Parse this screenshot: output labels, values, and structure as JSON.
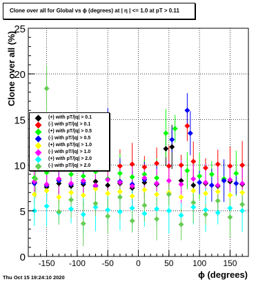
{
  "title": "Clone  over all for Global vs ϕ (degrees) at | η | <= 1.0 at pT > 0.11",
  "footer": "Thu Oct 15 19:24:10 2020",
  "chart_data": {
    "type": "scatter",
    "xlabel": "ϕ (degrees)",
    "ylabel": "Clone  over all (%)",
    "xlim": [
      -180,
      180
    ],
    "ylim": [
      0,
      25
    ],
    "x_ticks": [
      -150,
      -100,
      -50,
      0,
      50,
      100,
      150
    ],
    "y_ticks": [
      0,
      5,
      10,
      15,
      20,
      25
    ],
    "grid": true,
    "legend_position": "left, middle",
    "series": [
      {
        "name": "(+) with pT/|q| > 0.1",
        "color": "#000000",
        "points": [
          [
            -170,
            8.1
          ],
          [
            -150,
            7.6
          ],
          [
            -130,
            8.0
          ],
          [
            -110,
            7.7
          ],
          [
            -90,
            7.9
          ],
          [
            -70,
            8.2
          ],
          [
            -50,
            7.8
          ],
          [
            -30,
            8.0
          ],
          [
            -10,
            7.5
          ],
          [
            10,
            8.1
          ],
          [
            30,
            7.9
          ],
          [
            45,
            11.8
          ],
          [
            55,
            12.0
          ],
          [
            70,
            8.3
          ],
          [
            90,
            7.8
          ],
          [
            110,
            8.0
          ],
          [
            130,
            7.7
          ],
          [
            150,
            8.2
          ],
          [
            170,
            7.9
          ]
        ]
      },
      {
        "name": "(-) with pT/|q| > 0.1",
        "color": "#ff0000",
        "points": [
          [
            -170,
            9.8
          ],
          [
            -150,
            10.1
          ],
          [
            -130,
            9.6
          ],
          [
            -110,
            10.2
          ],
          [
            -90,
            10.0
          ],
          [
            -70,
            9.7
          ],
          [
            -50,
            10.3
          ],
          [
            -30,
            9.9
          ],
          [
            -10,
            10.1
          ],
          [
            10,
            9.8
          ],
          [
            30,
            10.2
          ],
          [
            50,
            9.9
          ],
          [
            70,
            10.0
          ],
          [
            80,
            14.3
          ],
          [
            90,
            10.4
          ],
          [
            110,
            9.7
          ],
          [
            130,
            10.1
          ],
          [
            150,
            9.9
          ],
          [
            170,
            10.0
          ]
        ]
      },
      {
        "name": "(+) with pT/|q| > 0.5",
        "color": "#00ff00",
        "points": [
          [
            -170,
            8.6
          ],
          [
            -150,
            9.2
          ],
          [
            -130,
            8.4
          ],
          [
            -110,
            9.0
          ],
          [
            -90,
            8.8
          ],
          [
            -70,
            9.3
          ],
          [
            -50,
            8.5
          ],
          [
            -30,
            9.1
          ],
          [
            -10,
            8.7
          ],
          [
            10,
            9.0
          ],
          [
            30,
            8.6
          ],
          [
            45,
            13.5
          ],
          [
            60,
            14.0
          ],
          [
            80,
            9.4
          ],
          [
            100,
            8.8
          ],
          [
            120,
            9.0
          ],
          [
            140,
            8.5
          ],
          [
            160,
            9.1
          ]
        ]
      },
      {
        "name": "(-) with pT/|q| > 0.5",
        "color": "#0000ff",
        "points": [
          [
            -170,
            8.0
          ],
          [
            -150,
            7.8
          ],
          [
            -130,
            8.3
          ],
          [
            -110,
            7.9
          ],
          [
            -90,
            8.1
          ],
          [
            -70,
            7.7
          ],
          [
            -50,
            14.2
          ],
          [
            -30,
            8.2
          ],
          [
            -10,
            7.9
          ],
          [
            10,
            8.4
          ],
          [
            30,
            8.0
          ],
          [
            55,
            12.8
          ],
          [
            80,
            16.0
          ],
          [
            85,
            13.5
          ],
          [
            100,
            8.1
          ],
          [
            120,
            7.8
          ],
          [
            140,
            8.3
          ],
          [
            160,
            8.0
          ]
        ]
      },
      {
        "name": "(+) with pT/|q| > 1.0",
        "color": "#ffff00",
        "points": [
          [
            -170,
            6.8
          ],
          [
            -150,
            7.2
          ],
          [
            -130,
            6.5
          ],
          [
            -110,
            7.0
          ],
          [
            -90,
            6.7
          ],
          [
            -70,
            7.4
          ],
          [
            -50,
            6.9
          ],
          [
            -30,
            7.1
          ],
          [
            -10,
            6.6
          ],
          [
            10,
            7.3
          ],
          [
            30,
            6.8
          ],
          [
            50,
            7.0
          ],
          [
            70,
            6.5
          ],
          [
            90,
            7.2
          ],
          [
            110,
            6.9
          ],
          [
            130,
            7.1
          ],
          [
            150,
            6.7
          ],
          [
            170,
            7.0
          ]
        ]
      },
      {
        "name": "(-) with pT/|q| > 1.0",
        "color": "#ff00ff",
        "points": [
          [
            -170,
            8.2
          ],
          [
            -150,
            7.9
          ],
          [
            -130,
            8.5
          ],
          [
            -110,
            8.0
          ],
          [
            -90,
            8.3
          ],
          [
            -70,
            7.8
          ],
          [
            -50,
            8.4
          ],
          [
            -30,
            8.1
          ],
          [
            -10,
            7.7
          ],
          [
            10,
            8.6
          ],
          [
            30,
            8.0
          ],
          [
            50,
            8.3
          ],
          [
            70,
            7.9
          ],
          [
            90,
            8.5
          ],
          [
            110,
            8.1
          ],
          [
            130,
            7.8
          ],
          [
            150,
            8.4
          ],
          [
            170,
            8.0
          ]
        ]
      },
      {
        "name": "(+) with pT/|q| > 2.0",
        "color": "#00ffff",
        "points": [
          [
            -170,
            5.0
          ],
          [
            -150,
            5.5
          ],
          [
            -130,
            4.8
          ],
          [
            -110,
            5.2
          ],
          [
            -90,
            4.6
          ],
          [
            -70,
            5.4
          ],
          [
            -50,
            5.1
          ],
          [
            -30,
            4.9
          ],
          [
            -10,
            5.3
          ],
          [
            10,
            4.7
          ],
          [
            30,
            5.2
          ],
          [
            50,
            5.0
          ],
          [
            70,
            4.5
          ],
          [
            90,
            5.4
          ],
          [
            110,
            5.1
          ],
          [
            130,
            4.8
          ],
          [
            150,
            5.3
          ],
          [
            170,
            5.0
          ]
        ]
      },
      {
        "name": "(-) with pT/|q| > 2.0",
        "color": "#66cc55",
        "points": [
          [
            -168,
            8.5
          ],
          [
            -150,
            18.4
          ],
          [
            -130,
            4.9
          ],
          [
            -110,
            6.2
          ],
          [
            -90,
            3.6
          ],
          [
            -70,
            5.8
          ],
          [
            -50,
            4.4
          ],
          [
            -30,
            6.5
          ],
          [
            -10,
            3.9
          ],
          [
            10,
            5.6
          ],
          [
            30,
            4.1
          ],
          [
            50,
            6.8
          ],
          [
            70,
            3.5
          ],
          [
            90,
            5.9
          ],
          [
            110,
            4.6
          ],
          [
            130,
            6.1
          ],
          [
            150,
            4.3
          ],
          [
            170,
            5.7
          ]
        ]
      }
    ]
  }
}
